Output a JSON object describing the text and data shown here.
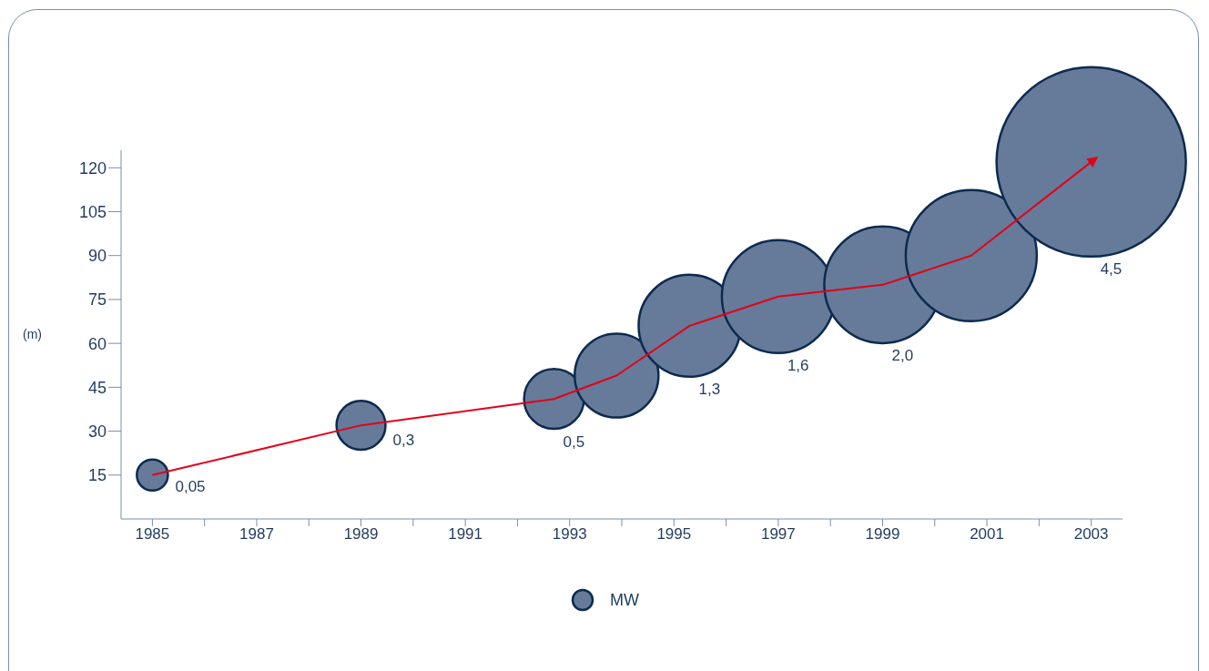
{
  "chart_data": {
    "type": "bubble",
    "ylabel": "(m)",
    "x": [
      1985,
      1989,
      1992.7,
      1993.9,
      1995.3,
      1997,
      1999,
      2000.7,
      2003
    ],
    "series": [
      {
        "name": "MW",
        "type": "bubble",
        "color": "#667b9a",
        "values": [
          15,
          32,
          41,
          49,
          66,
          76,
          80,
          90,
          122
        ],
        "sizes": [
          0.027,
          0.067,
          0.1,
          0.196,
          0.29,
          0.355,
          0.379,
          0.479,
          1
        ]
      },
      {
        "type": "line",
        "color": "#e2001a",
        "values": [
          15,
          32,
          41,
          49,
          66,
          76,
          80,
          90,
          122
        ]
      }
    ],
    "annotations": [
      "0,05",
      "0,3",
      "0,5",
      "1,3",
      "1,6",
      "2,0",
      "4,5"
    ],
    "xlim": [
      1984.4,
      2003.6
    ],
    "xticks": [
      1985,
      {
        "value": 1986,
        "label": null
      },
      1987,
      {
        "value": 1988,
        "label": null
      },
      1989,
      {
        "value": 1990,
        "label": null
      },
      1991,
      {
        "value": 1992,
        "label": null
      },
      1993,
      {
        "value": 1994,
        "label": null
      },
      1995,
      {
        "value": 1996,
        "label": null
      },
      1997,
      {
        "value": 1998,
        "label": null
      },
      1999,
      {
        "value": 2000,
        "label": null
      },
      2001,
      {
        "value": 2002,
        "label": null
      },
      2003
    ],
    "ylim": [
      0,
      126
    ],
    "yticks": [
      15,
      30,
      45,
      60,
      75,
      90,
      105,
      120
    ],
    "legend": "bottom"
  }
}
